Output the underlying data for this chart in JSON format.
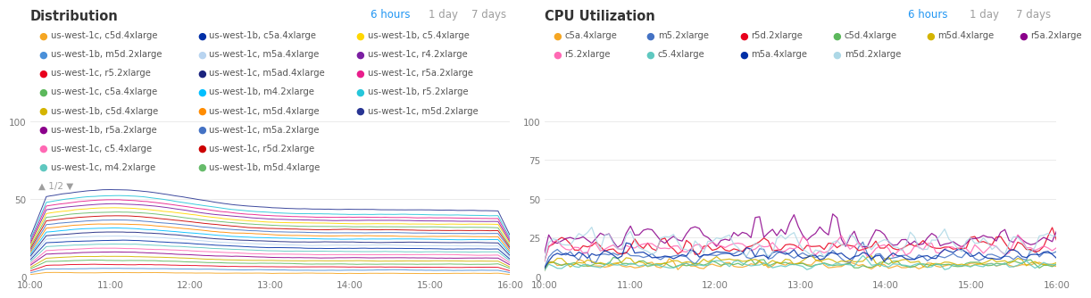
{
  "dist_title": "Distribution",
  "cpu_title": "CPU Utilization",
  "time_label_active": "6 hours",
  "time_label_1day": "1 day",
  "time_label_7days": "7 days",
  "xticks": [
    "10:00",
    "11:00",
    "12:00",
    "13:00",
    "14:00",
    "15:00",
    "16:00"
  ],
  "dist_yticks": [
    0,
    50,
    100
  ],
  "cpu_yticks": [
    0,
    25,
    50,
    75,
    100
  ],
  "dist_ylim": [
    0,
    100
  ],
  "cpu_ylim": [
    0,
    100
  ],
  "background_color": "#ffffff",
  "dist_legend": [
    {
      "label": "us-west-1c, c5d.4xlarge",
      "color": "#F5A623"
    },
    {
      "label": "us-west-1b, m5d.2xlarge",
      "color": "#4A90D9"
    },
    {
      "label": "us-west-1c, r5.2xlarge",
      "color": "#E8001D"
    },
    {
      "label": "us-west-1c, c5a.4xlarge",
      "color": "#5CB85C"
    },
    {
      "label": "us-west-1b, c5d.4xlarge",
      "color": "#D4B400"
    },
    {
      "label": "us-west-1b, r5a.2xlarge",
      "color": "#8B008B"
    },
    {
      "label": "us-west-1c, c5.4xlarge",
      "color": "#FF69B4"
    },
    {
      "label": "us-west-1c, m4.2xlarge",
      "color": "#5FC8C0"
    },
    {
      "label": "us-west-1b, c5a.4xlarge",
      "color": "#002FA7"
    },
    {
      "label": "us-west-1c, m5a.4xlarge",
      "color": "#B8D4F0"
    },
    {
      "label": "us-west-1c, m5ad.4xlarge",
      "color": "#1A237E"
    },
    {
      "label": "us-west-1b, m4.2xlarge",
      "color": "#00BFFF"
    },
    {
      "label": "us-west-1c, m5d.4xlarge",
      "color": "#FF8C00"
    },
    {
      "label": "us-west-1c, m5a.2xlarge",
      "color": "#4472C4"
    },
    {
      "label": "us-west-1c, r5d.2xlarge",
      "color": "#CC0000"
    },
    {
      "label": "us-west-1b, m5d.4xlarge",
      "color": "#66BB6A"
    },
    {
      "label": "us-west-1b, c5.4xlarge",
      "color": "#FFD700"
    },
    {
      "label": "us-west-1c, r4.2xlarge",
      "color": "#7B1FA2"
    },
    {
      "label": "us-west-1c, r5a.2xlarge",
      "color": "#E91E8C"
    },
    {
      "label": "us-west-1b, r5.2xlarge",
      "color": "#26C6DA"
    },
    {
      "label": "us-west-1c, m5d.2xlarge",
      "color": "#283593"
    }
  ],
  "cpu_legend": [
    {
      "label": "c5a.4xlarge",
      "color": "#F5A623"
    },
    {
      "label": "m5.2xlarge",
      "color": "#4472C4"
    },
    {
      "label": "r5d.2xlarge",
      "color": "#E8001D"
    },
    {
      "label": "c5d.4xlarge",
      "color": "#5CB85C"
    },
    {
      "label": "m5d.4xlarge",
      "color": "#D4B400"
    },
    {
      "label": "r5a.2xlarge",
      "color": "#8B008B"
    },
    {
      "label": "r5.2xlarge",
      "color": "#FF69B4"
    },
    {
      "label": "c5.4xlarge",
      "color": "#5FC8C0"
    },
    {
      "label": "m5a.4xlarge",
      "color": "#002FA7"
    },
    {
      "label": "m5d.2xlarge",
      "color": "#ADD8E6"
    }
  ],
  "num_points": 120,
  "dist_num_series": 21,
  "dist_base_values": [
    2,
    4,
    6,
    8,
    10,
    12,
    14,
    16,
    18,
    20,
    22,
    24,
    26,
    28,
    30,
    32,
    34,
    36,
    38,
    40,
    43
  ],
  "cpu_series": [
    {
      "color": "#F5A623",
      "base": 7,
      "noise": 1.5
    },
    {
      "color": "#4472C4",
      "base": 13,
      "noise": 2.5
    },
    {
      "color": "#E8001D",
      "base": 19,
      "noise": 3.5
    },
    {
      "color": "#5CB85C",
      "base": 8,
      "noise": 1.5
    },
    {
      "color": "#D4B400",
      "base": 9,
      "noise": 1.8
    },
    {
      "color": "#8B008B",
      "base": 25,
      "noise": 5.0
    },
    {
      "color": "#FF69B4",
      "base": 18,
      "noise": 3.0
    },
    {
      "color": "#5FC8C0",
      "base": 7,
      "noise": 1.5
    },
    {
      "color": "#002FA7",
      "base": 14,
      "noise": 2.5
    },
    {
      "color": "#ADD8E6",
      "base": 21,
      "noise": 5.0
    }
  ]
}
